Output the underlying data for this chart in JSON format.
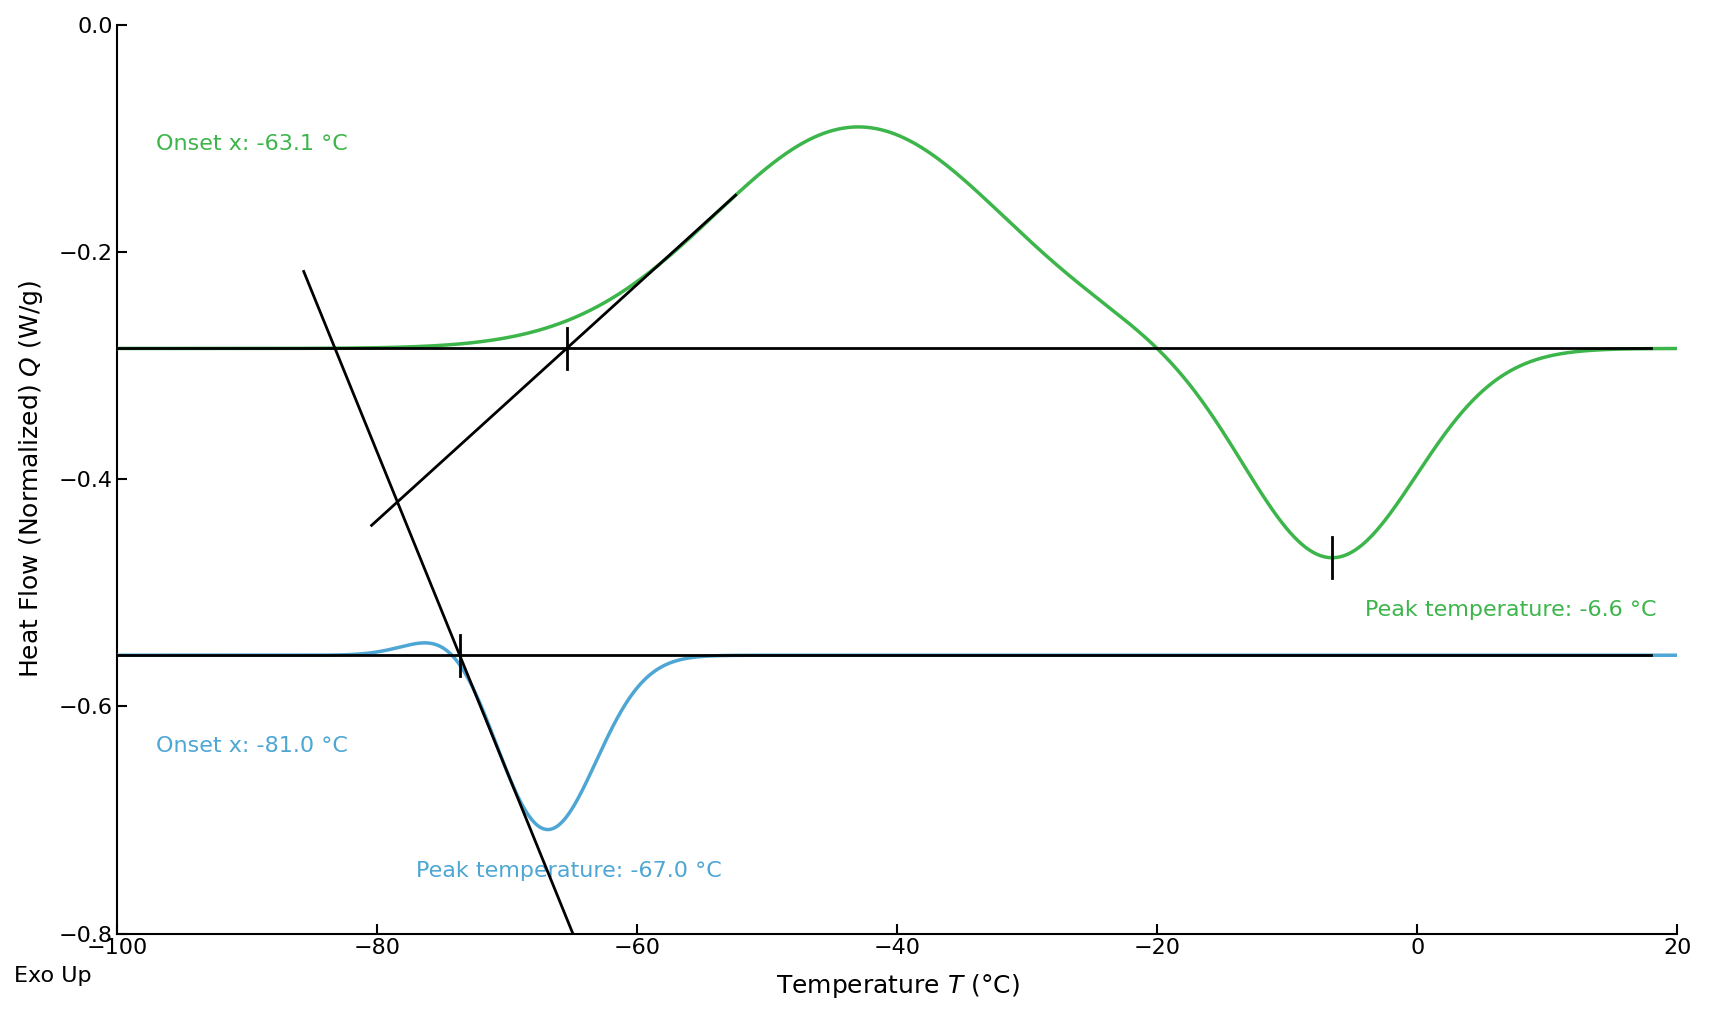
{
  "xlabel": "Temperature  T (°C)",
  "ylabel": "Heat Flow (Normalized)  Q (W/g)",
  "xlim": [
    -100,
    20
  ],
  "ylim": [
    -0.8,
    0.0
  ],
  "yticks": [
    0.0,
    -0.2,
    -0.4,
    -0.6,
    -0.8
  ],
  "xticks": [
    -100,
    -80,
    -60,
    -40,
    -20,
    0,
    20
  ],
  "exo_up_label": "Exo Up",
  "green_color": "#3cb54a",
  "blue_color": "#4da6d4",
  "black_color": "#000000",
  "bg_color": "#ffffff",
  "green_baseline": -0.285,
  "blue_baseline": -0.555,
  "green_onset_label": "Onset x: -63.1 °C",
  "green_peak_label": "Peak temperature: -6.6 °C",
  "blue_onset_label": "Onset x: -81.0 °C",
  "blue_peak_label": "Peak temperature: -67.0 °C",
  "annotation_fontsize": 16,
  "axis_label_fontsize": 18,
  "tick_fontsize": 16
}
